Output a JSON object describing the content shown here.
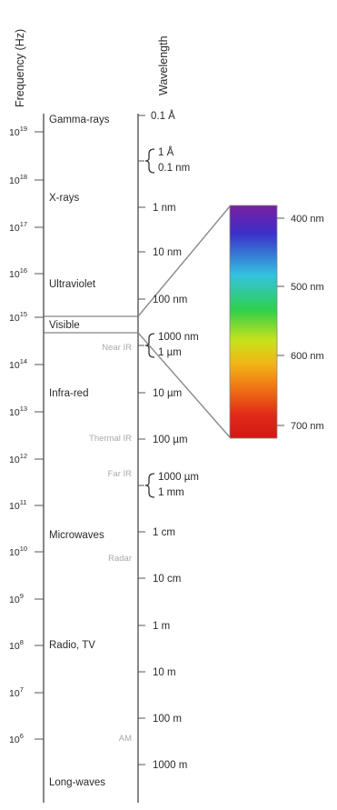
{
  "titles": {
    "frequency": "Frequency (Hz)",
    "wavelength": "Wavelength"
  },
  "frequency_ticks": [
    {
      "base": "10",
      "exp": "19"
    },
    {
      "base": "10",
      "exp": "18"
    },
    {
      "base": "10",
      "exp": "17"
    },
    {
      "base": "10",
      "exp": "16"
    },
    {
      "base": "10",
      "exp": "15"
    },
    {
      "base": "10",
      "exp": "14"
    },
    {
      "base": "10",
      "exp": "13"
    },
    {
      "base": "10",
      "exp": "12"
    },
    {
      "base": "10",
      "exp": "11"
    },
    {
      "base": "10",
      "exp": "10"
    },
    {
      "base": "10",
      "exp": "9"
    },
    {
      "base": "10",
      "exp": "8"
    },
    {
      "base": "10",
      "exp": "7"
    },
    {
      "base": "10",
      "exp": "6"
    }
  ],
  "bands": [
    "Gamma-rays",
    "X-rays",
    "Ultraviolet",
    "Visible",
    "Infra-red",
    "Microwaves",
    "Radio, TV",
    "Long-waves"
  ],
  "sub_bands": [
    "Near IR",
    "Thermal IR",
    "Far IR",
    "Radar",
    "AM"
  ],
  "wavelength_ticks": [
    "0.1 Å",
    "1 nm",
    "10 nm",
    "100 nm",
    "10 µm",
    "100 µm",
    "1 cm",
    "10 cm",
    "1 m",
    "10 m",
    "100 m",
    "1000 m"
  ],
  "wavelength_brackets": [
    [
      "1 Å",
      "0.1 nm"
    ],
    [
      "1000 nm",
      "1 µm"
    ],
    [
      "1000 µm",
      "1 mm"
    ]
  ],
  "visible_spectrum": {
    "labels": [
      "400 nm",
      "500 nm",
      "600 nm",
      "700 nm"
    ],
    "colors": [
      "#7a1fa0",
      "#3b2fc9",
      "#33c3df",
      "#2fd04a",
      "#c8e31a",
      "#f2b516",
      "#ef6a14",
      "#e02a18",
      "#d41616"
    ]
  }
}
